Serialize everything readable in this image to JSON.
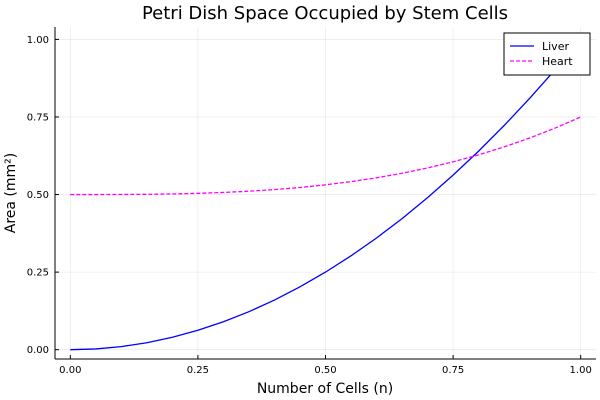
{
  "chart_data": {
    "type": "line",
    "title": "Petri Dish Space Occupied by Stem Cells",
    "xlabel": "Number of Cells (n)",
    "ylabel": "Area (mm²)",
    "xlim": [
      -0.03,
      1.03
    ],
    "ylim": [
      -0.03,
      1.04
    ],
    "xticks": [
      0.0,
      0.25,
      0.5,
      0.75,
      1.0
    ],
    "xtick_labels": [
      "0.00",
      "0.25",
      "0.50",
      "0.75",
      "1.00"
    ],
    "yticks": [
      0.0,
      0.25,
      0.5,
      0.75,
      1.0
    ],
    "ytick_labels": [
      "0.00",
      "0.25",
      "0.50",
      "0.75",
      "1.00"
    ],
    "grid": true,
    "legend_position": "top-right",
    "x": [
      0.0,
      0.05,
      0.1,
      0.15,
      0.2,
      0.25,
      0.3,
      0.35,
      0.4,
      0.45,
      0.5,
      0.55,
      0.6,
      0.65,
      0.7,
      0.75,
      0.8,
      0.85,
      0.9,
      0.95,
      1.0
    ],
    "series": [
      {
        "name": "Liver",
        "color": "#0000ff",
        "dash": "solid",
        "values": [
          0.0,
          0.0025,
          0.01,
          0.0225,
          0.04,
          0.0625,
          0.09,
          0.1225,
          0.16,
          0.2025,
          0.25,
          0.3025,
          0.36,
          0.4225,
          0.49,
          0.5625,
          0.64,
          0.7225,
          0.81,
          0.9025,
          1.0
        ]
      },
      {
        "name": "Heart",
        "color": "#ff00ff",
        "dash": "dashed",
        "values": [
          0.5,
          0.5,
          0.5003,
          0.5008,
          0.502,
          0.5039,
          0.5068,
          0.5107,
          0.516,
          0.5228,
          0.5313,
          0.5416,
          0.554,
          0.5686,
          0.5858,
          0.6055,
          0.628,
          0.6535,
          0.6823,
          0.7143,
          0.75
        ]
      }
    ]
  }
}
